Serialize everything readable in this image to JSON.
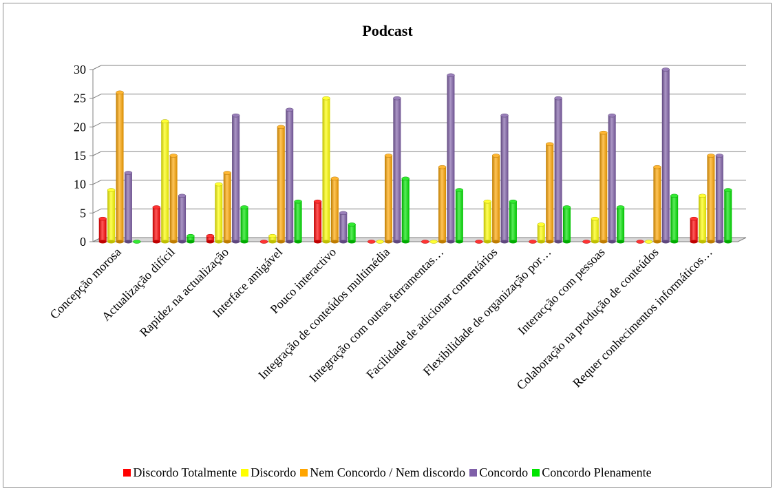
{
  "chart_data": {
    "type": "bar",
    "title": "Podcast",
    "xlabel": "",
    "ylabel": "",
    "ylim": [
      0,
      30
    ],
    "yticks": [
      0,
      5,
      10,
      15,
      20,
      25,
      30
    ],
    "grid": true,
    "legend_position": "bottom",
    "categories": [
      "Concepção morosa",
      "Actualização difícil",
      "Rapidez na actualização",
      "Interface amigável",
      "Pouco interactivo",
      "Integração de conteúdos multimédia",
      "Integração com outras ferramentas…",
      "Facilidade de adicionar comentários",
      "Flexibilidade de organização por…",
      "Interacção com pessoas",
      "Colaboração na produção de conteúdos",
      "Requer conhecimentos informáticos…"
    ],
    "series": [
      {
        "name": "Discordo Totalmente",
        "color": "#ff0000",
        "values": [
          4,
          6,
          1,
          0,
          7,
          0,
          0,
          0,
          0,
          0,
          0,
          4
        ]
      },
      {
        "name": "Discordo",
        "color": "#ffff00",
        "values": [
          9,
          21,
          10,
          1,
          25,
          0,
          0,
          7,
          3,
          4,
          0,
          8
        ]
      },
      {
        "name": "Nem Concordo / Nem discordo",
        "color": "#ffa500",
        "values": [
          26,
          15,
          12,
          20,
          11,
          15,
          13,
          15,
          17,
          19,
          13,
          15
        ]
      },
      {
        "name": "Concordo",
        "color": "#7f5fa8",
        "values": [
          12,
          8,
          22,
          23,
          5,
          25,
          29,
          22,
          25,
          22,
          30,
          15
        ]
      },
      {
        "name": "Concordo Plenamente",
        "color": "#00e400",
        "values": [
          0,
          1,
          6,
          7,
          3,
          11,
          9,
          7,
          6,
          6,
          8,
          9
        ]
      }
    ]
  }
}
